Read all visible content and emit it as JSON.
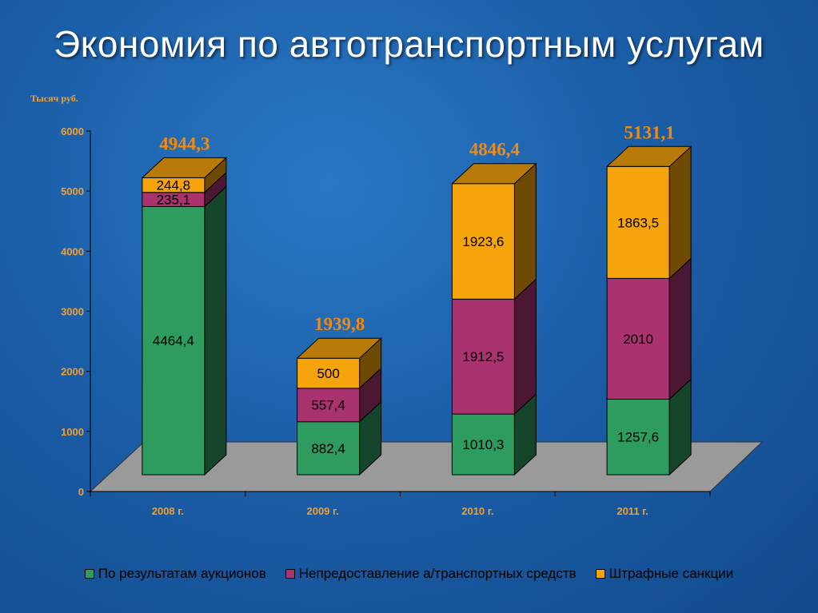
{
  "title": "Экономия по автотранспортным услугам",
  "chart_data": {
    "type": "bar",
    "stacked": true,
    "ylabel": "Тысяч руб.",
    "ylim": [
      0,
      6000
    ],
    "yticks": [
      0,
      1000,
      2000,
      3000,
      4000,
      5000,
      6000
    ],
    "categories": [
      "2008 г.",
      "2009 г.",
      "2010 г.",
      "2011 г."
    ],
    "series": [
      {
        "name": "По результатам аукционов",
        "color": "#2e9b5f",
        "values": [
          4464.4,
          882.4,
          1010.3,
          1257.6
        ],
        "labels": [
          "4464,4",
          "882,4",
          "1010,3",
          "1257,6"
        ]
      },
      {
        "name": "Непредоставление а/транспортных средств",
        "color": "#a8336e",
        "values": [
          235.1,
          557.4,
          1912.5,
          2010
        ],
        "labels": [
          "235,1",
          "557,4",
          "1912,5",
          "2010"
        ]
      },
      {
        "name": "Штрафные санкции",
        "color": "#f5a40c",
        "values": [
          244.8,
          500,
          1923.6,
          1863.5
        ],
        "labels": [
          "244,8",
          "500",
          "1923,6",
          "1863,5"
        ]
      }
    ],
    "totals": [
      "4944,3",
      "1939,8",
      "4846,4",
      "5131,1"
    ],
    "legend_position": "bottom",
    "grid": false
  }
}
